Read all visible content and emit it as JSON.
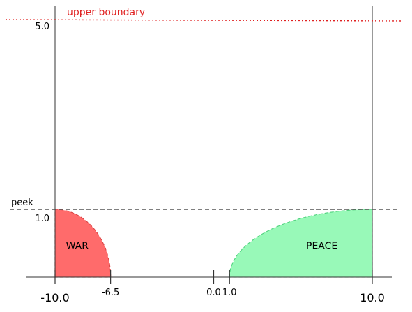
{
  "chart_data": {
    "type": "area",
    "x_ticks": [
      {
        "value": -10.0,
        "label": "-10.0",
        "emphasis": true
      },
      {
        "value": -6.5,
        "label": "-6.5",
        "emphasis": false
      },
      {
        "value": 0.0,
        "label": "0.0",
        "emphasis": false
      },
      {
        "value": 1.0,
        "label": "1.0",
        "emphasis": false
      },
      {
        "value": 10.0,
        "label": "10.0",
        "emphasis": true
      }
    ],
    "y_ticks": [
      {
        "value": 1.0,
        "label": "1.0"
      },
      {
        "value": 5.0,
        "label": "5.0"
      }
    ],
    "reference_lines": [
      {
        "name": "upper boundary",
        "y": 5.0,
        "color": "#e02020",
        "style": "dotted"
      },
      {
        "name": "peek",
        "y": 1.0,
        "color": "#555555",
        "style": "dashed"
      }
    ],
    "regions": [
      {
        "name": "WAR",
        "x_start": -10.0,
        "x_end": -6.5,
        "peak_x": -10.0,
        "peak_y": 1.0,
        "color": "#ff6b6b"
      },
      {
        "name": "PEACE",
        "x_start": 1.0,
        "x_end": 10.0,
        "peak_x": 10.0,
        "peak_y": 1.0,
        "color": "#98f9b8"
      }
    ],
    "xlim": [
      -10.0,
      10.0
    ],
    "ylim": [
      0.0,
      5.0
    ]
  }
}
